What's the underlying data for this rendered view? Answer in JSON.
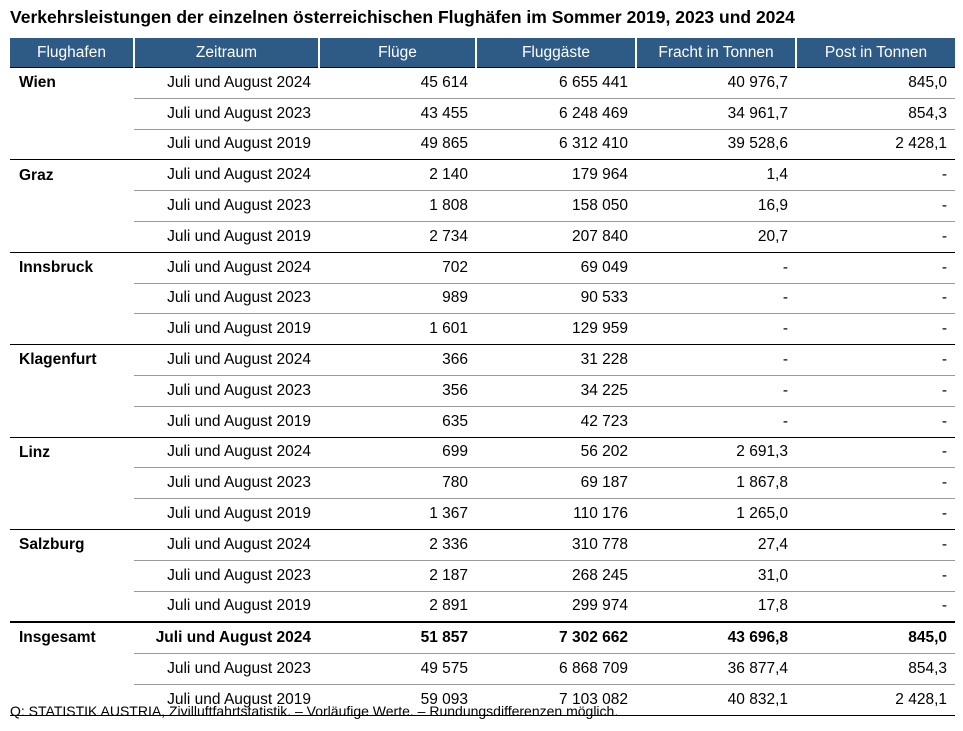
{
  "title": "Verkehrsleistungen der einzelnen österreichischen Flughäfen im Sommer 2019, 2023 und 2024",
  "headers": [
    "Flughafen",
    "Zeitraum",
    "Flüge",
    "Fluggäste",
    "Fracht in Tonnen",
    "Post in Tonnen"
  ],
  "groups": [
    {
      "name": "Wien",
      "rows": [
        [
          "Juli und August 2024",
          "45 614",
          "6 655 441",
          "40 976,7",
          "845,0"
        ],
        [
          "Juli und August 2023",
          "43 455",
          "6 248 469",
          "34 961,7",
          "854,3"
        ],
        [
          "Juli und August 2019",
          "49 865",
          "6 312 410",
          "39 528,6",
          "2 428,1"
        ]
      ]
    },
    {
      "name": "Graz",
      "rows": [
        [
          "Juli und August 2024",
          "2 140",
          "179 964",
          "1,4",
          "-"
        ],
        [
          "Juli und August 2023",
          "1 808",
          "158 050",
          "16,9",
          "-"
        ],
        [
          "Juli und August 2019",
          "2 734",
          "207 840",
          "20,7",
          "-"
        ]
      ]
    },
    {
      "name": "Innsbruck",
      "rows": [
        [
          "Juli und August 2024",
          "702",
          "69 049",
          "-",
          "-"
        ],
        [
          "Juli und August 2023",
          "989",
          "90 533",
          "-",
          "-"
        ],
        [
          "Juli und August 2019",
          "1 601",
          "129 959",
          "-",
          "-"
        ]
      ]
    },
    {
      "name": "Klagenfurt",
      "rows": [
        [
          "Juli und August 2024",
          "366",
          "31 228",
          "-",
          "-"
        ],
        [
          "Juli und August 2023",
          "356",
          "34 225",
          "-",
          "-"
        ],
        [
          "Juli und August 2019",
          "635",
          "42 723",
          "-",
          "-"
        ]
      ]
    },
    {
      "name": "Linz",
      "rows": [
        [
          "Juli und August 2024",
          "699",
          "56 202",
          "2 691,3",
          "-"
        ],
        [
          "Juli und August 2023",
          "780",
          "69 187",
          "1 867,8",
          "-"
        ],
        [
          "Juli und August 2019",
          "1 367",
          "110 176",
          "1 265,0",
          "-"
        ]
      ]
    },
    {
      "name": "Salzburg",
      "rows": [
        [
          "Juli und August 2024",
          "2 336",
          "310 778",
          "27,4",
          "-"
        ],
        [
          "Juli und August 2023",
          "2 187",
          "268 245",
          "31,0",
          "-"
        ],
        [
          "Juli und August 2019",
          "2 891",
          "299 974",
          "17,8",
          "-"
        ]
      ]
    },
    {
      "name": "Insgesamt",
      "total": true,
      "rows": [
        [
          "Juli und August 2024",
          "51 857",
          "7 302 662",
          "43 696,8",
          "845,0"
        ],
        [
          "Juli und August 2023",
          "49 575",
          "6 868 709",
          "36 877,4",
          "854,3"
        ],
        [
          "Juli und August 2019",
          "59 093",
          "7 103 082",
          "40 832,1",
          "2 428,1"
        ]
      ]
    }
  ],
  "footnote": "Q: STATISTIK AUSTRIA, Zivilluftfahrtstatistik. – Vorläufige Werte. – Rundungsdifferenzen möglich."
}
